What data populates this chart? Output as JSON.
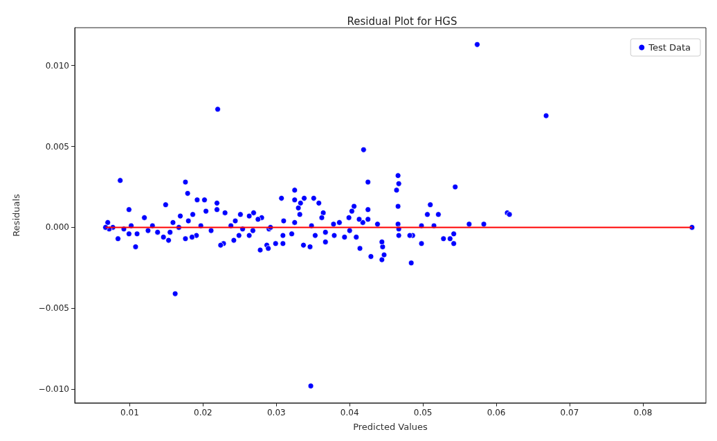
{
  "chart_data": {
    "type": "scatter",
    "title": "Residual Plot for HGS",
    "xlabel": "Predicted Values",
    "ylabel": "Residuals",
    "xlim": [
      0.0025,
      0.0886
    ],
    "ylim": [
      -0.01085,
      0.01234
    ],
    "xticks": [
      0.01,
      0.02,
      0.03,
      0.04,
      0.05,
      0.06,
      0.07,
      0.08
    ],
    "yticks": [
      {
        "value": -0.01,
        "label": "−0.010"
      },
      {
        "value": -0.005,
        "label": "−0.005"
      },
      {
        "value": 0,
        "label": "0.000"
      },
      {
        "value": 0.005,
        "label": "0.005"
      },
      {
        "value": 0.01,
        "label": "0.010"
      }
    ],
    "grid": false,
    "legend": "top right",
    "marker": "circle",
    "series": [
      {
        "name": "Test Data",
        "color": "#0000ff",
        "x": [
          0.0087,
          0.022,
          0.0162,
          0.0347,
          0.0574,
          0.0668,
          0.0867,
          0.0419,
          0.0466,
          0.0467,
          0.0464,
          0.0425,
          0.0544,
          0.0176,
          0.0179,
          0.0325,
          0.0484,
          0.0444,
          0.0447,
          0.0445,
          0.0444,
          0.0429,
          0.0414,
          0.0615,
          0.0618,
          0.0583,
          0.0563,
          0.0542,
          0.0542,
          0.0537,
          0.0528,
          0.0521,
          0.051,
          0.0506,
          0.0515,
          0.0498,
          0.0498,
          0.0486,
          0.0482,
          0.0466,
          0.0466,
          0.0467,
          0.0467,
          0.0438,
          0.0425,
          0.0425,
          0.0418,
          0.0413,
          0.0406,
          0.0403,
          0.0399,
          0.0409,
          0.04,
          0.0393,
          0.0386,
          0.0378,
          0.0379,
          0.0367,
          0.0364,
          0.0362,
          0.0358,
          0.0351,
          0.0348,
          0.0353,
          0.0346,
          0.0338,
          0.0333,
          0.033,
          0.0332,
          0.0325,
          0.0325,
          0.0321,
          0.0337,
          0.0307,
          0.031,
          0.0309,
          0.0309,
          0.0299,
          0.029,
          0.0287,
          0.0289,
          0.0278,
          0.028,
          0.0275,
          0.0269,
          0.0263,
          0.0263,
          0.0251,
          0.0244,
          0.0249,
          0.0242,
          0.023,
          0.0228,
          0.0219,
          0.0219,
          0.0224,
          0.0202,
          0.0204,
          0.0192,
          0.0186,
          0.018,
          0.0191,
          0.0185,
          0.0176,
          0.0169,
          0.0159,
          0.0155,
          0.0153,
          0.0149,
          0.0146,
          0.0138,
          0.0131,
          0.012,
          0.011,
          0.0108,
          0.0099,
          0.0099,
          0.0092,
          0.0084,
          0.0077,
          0.0072,
          0.007,
          0.0067,
          0.0102,
          0.0125,
          0.0167,
          0.0197,
          0.0211,
          0.0238,
          0.0254,
          0.0268,
          0.0292,
          0.0367
        ],
        "values": [
          0.0029,
          0.0073,
          -0.0041,
          -0.0098,
          0.0113,
          0.0069,
          0.0,
          0.0048,
          0.0032,
          0.0027,
          0.0023,
          0.0028,
          0.0025,
          0.0028,
          0.0021,
          0.0023,
          -0.0022,
          -0.002,
          -0.0017,
          -0.0012,
          -0.0009,
          -0.0018,
          -0.0013,
          0.0009,
          0.0008,
          0.0002,
          0.0002,
          -0.0004,
          -0.001,
          -0.0007,
          -0.0007,
          0.0008,
          0.0014,
          0.0008,
          0.0001,
          0.0001,
          -0.001,
          -0.0005,
          -0.0005,
          0.0013,
          0.0002,
          -0.0001,
          -0.0005,
          0.0002,
          0.0011,
          0.0005,
          0.0003,
          0.0005,
          0.0013,
          0.001,
          0.0006,
          -0.0006,
          -0.0002,
          -0.0006,
          0.0003,
          0.0002,
          -0.0005,
          -0.0009,
          0.0009,
          0.0006,
          0.0015,
          0.0018,
          0.0001,
          -0.0005,
          -0.0012,
          0.0018,
          0.0015,
          0.0012,
          0.0008,
          0.0017,
          0.0003,
          -0.0004,
          -0.0011,
          0.0018,
          0.0004,
          -0.001,
          -0.0005,
          -0.001,
          -0.0001,
          -0.0011,
          -0.0013,
          -0.0014,
          0.0006,
          0.0005,
          0.0009,
          0.0007,
          -0.0005,
          0.0008,
          0.0004,
          -0.0005,
          -0.0008,
          0.0009,
          -0.001,
          0.0015,
          0.0011,
          -0.0011,
          0.0017,
          0.001,
          0.0017,
          0.0008,
          0.0004,
          -0.0005,
          -0.0006,
          -0.0007,
          0.0007,
          0.0003,
          -0.0003,
          -0.0008,
          0.0014,
          -0.0006,
          -0.0003,
          0.0001,
          0.0006,
          -0.0004,
          -0.0012,
          0.0011,
          -0.0004,
          -0.0001,
          -0.0007,
          0.0,
          -0.0001,
          0.0003,
          0.0,
          0.0001,
          -0.0002,
          0.0,
          0.0001,
          -0.0002,
          0.0001,
          -0.0001,
          -0.0002,
          0.0,
          -0.0003
        ]
      },
      {
        "type": "line",
        "color": "#ff0000",
        "marker": "none",
        "line_style": "solid",
        "x": [
          0.0067,
          0.0867
        ],
        "values": [
          0,
          0
        ]
      }
    ]
  }
}
